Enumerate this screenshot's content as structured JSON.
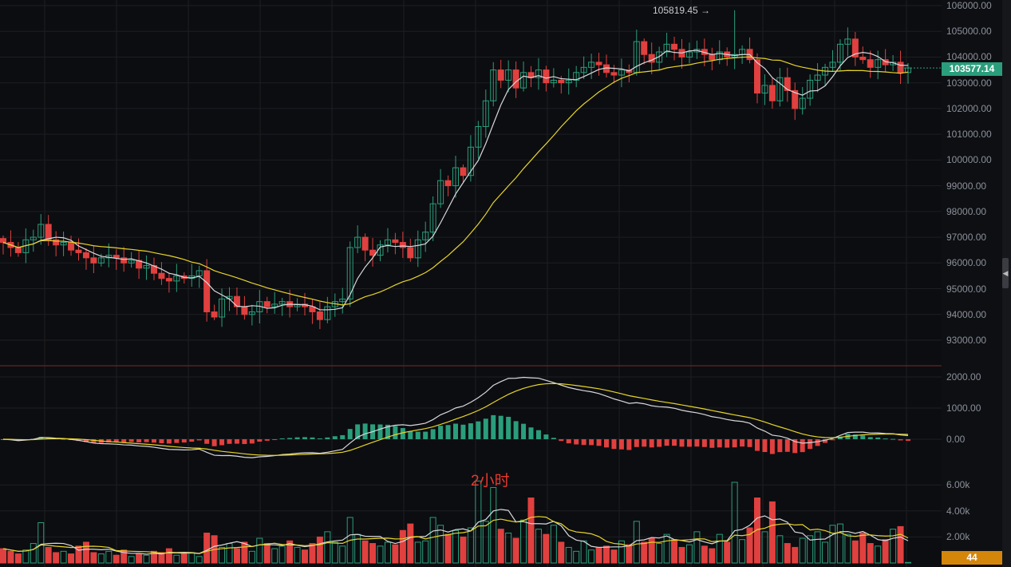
{
  "chart_data": {
    "type": "candlestick",
    "interval_label": "2小时",
    "price_axis": {
      "ticks": [
        "106000.00",
        "105000.00",
        "104000.00",
        "103000.00",
        "102000.00",
        "101000.00",
        "100000.00",
        "99000.00",
        "98000.00",
        "97000.00",
        "96000.00",
        "95000.00",
        "94000.00",
        "93000.00"
      ],
      "range": [
        92300,
        106200
      ]
    },
    "macd_axis": {
      "ticks": [
        "2000.00",
        "1000.00",
        "0.00"
      ]
    },
    "volume_axis": {
      "ticks": [
        "6.00k",
        "4.00k",
        "2.00k"
      ]
    },
    "current_price": "103577.14",
    "current_volume": "44",
    "high_marker": {
      "index": 97,
      "value": 105819.45,
      "label": "105819.45 →"
    },
    "closes": [
      96800,
      96600,
      96400,
      96900,
      97000,
      97500,
      96900,
      96700,
      96800,
      96500,
      96400,
      96200,
      96000,
      96200,
      96300,
      96200,
      96000,
      96100,
      95800,
      95900,
      95600,
      95400,
      95300,
      95500,
      95400,
      95500,
      95700,
      94100,
      93900,
      94600,
      94700,
      94300,
      94000,
      94100,
      94500,
      94300,
      94400,
      94500,
      94300,
      94400,
      94300,
      94100,
      93800,
      94300,
      94500,
      94600,
      96600,
      97000,
      96500,
      96300,
      96700,
      96900,
      96800,
      96600,
      96200,
      96900,
      97200,
      98300,
      99200,
      99000,
      99700,
      99400,
      100500,
      101300,
      102300,
      103500,
      103100,
      103500,
      102800,
      103400,
      103200,
      103500,
      103000,
      103100,
      103000,
      103100,
      103400,
      103600,
      103800,
      103700,
      103400,
      103300,
      103500,
      103400,
      104600,
      104100,
      103800,
      104200,
      104500,
      104300,
      104000,
      104200,
      104300,
      104100,
      103900,
      104200,
      104000,
      104100,
      104300,
      103900,
      102600,
      102900,
      102300,
      103200,
      102700,
      102000,
      102400,
      103100,
      103300,
      103600,
      103800,
      104500,
      104700,
      104000,
      103900,
      103600,
      103900,
      103700,
      103800,
      103400,
      103577.14
    ],
    "volumes": [
      1100,
      900,
      700,
      1000,
      1500,
      3100,
      1200,
      800,
      900,
      700,
      1300,
      1600,
      800,
      700,
      900,
      600,
      1000,
      500,
      700,
      600,
      900,
      800,
      1100,
      600,
      700,
      800,
      500,
      2300,
      2100,
      1200,
      1500,
      1100,
      1600,
      900,
      1900,
      1500,
      1100,
      1300,
      1700,
      1200,
      1000,
      1500,
      2000,
      2400,
      1600,
      1300,
      3500,
      2200,
      1700,
      1500,
      1300,
      1600,
      1400,
      2500,
      3000,
      1600,
      1700,
      3500,
      2900,
      2200,
      2500,
      2000,
      2700,
      6300,
      3200,
      5800,
      2600,
      2300,
      1900,
      3300,
      5000,
      2600,
      2200,
      2900,
      1600,
      1200,
      900,
      1700,
      1000,
      1200,
      1300,
      1000,
      1700,
      1400,
      3200,
      1600,
      1900,
      1500,
      2200,
      1800,
      1200,
      1400,
      2400,
      1300,
      1100,
      2200,
      1600,
      6200,
      1800,
      2700,
      5000,
      2400,
      4700,
      2100,
      1500,
      1200,
      1900,
      2100,
      2400,
      1600,
      2900,
      3000,
      2200,
      1700,
      2300,
      1500,
      1300,
      1800,
      2600,
      2800,
      44
    ]
  }
}
